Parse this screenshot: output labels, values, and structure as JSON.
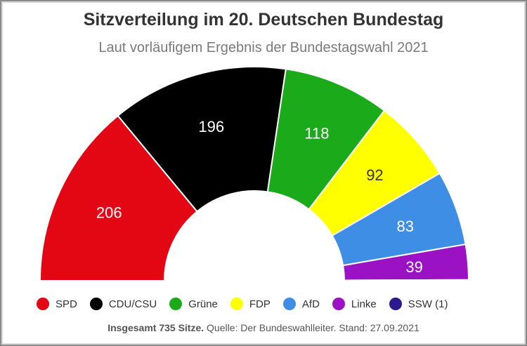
{
  "chart_data": {
    "type": "parliament-semicircle",
    "title": "Sitzverteilung im 20. Deutschen Bundestag",
    "subtitle": "Laut vorläufigem Ergebnis der Bundestagswahl 2021",
    "total_seats": 735,
    "series": [
      {
        "name": "SPD",
        "value": 206,
        "color": "#e30613",
        "label": "206",
        "label_color": "#ffffff"
      },
      {
        "name": "CDU/CSU",
        "value": 196,
        "color": "#000000",
        "label": "196",
        "label_color": "#ffffff"
      },
      {
        "name": "Grüne",
        "value": 118,
        "color": "#1aaa1a",
        "label": "118",
        "label_color": "#ffffff"
      },
      {
        "name": "FDP",
        "value": 92,
        "color": "#ffff00",
        "label": "92",
        "label_color": "#333333"
      },
      {
        "name": "AfD",
        "value": 83,
        "color": "#3f8ee6",
        "label": "83",
        "label_color": "#ffffff"
      },
      {
        "name": "Linke",
        "value": 39,
        "color": "#9a12c4",
        "label": "39",
        "label_color": "#ffffff"
      },
      {
        "name": "SSW (1)",
        "value": 1,
        "color": "#2a1a8c",
        "label": "",
        "label_color": "#ffffff"
      }
    ],
    "legend_placement": "bottom"
  },
  "footer": {
    "bold": "Insgesamt 735 Sitze.",
    "rest": " Quelle: Der Bundeswahlleiter. Stand: 27.09.2021"
  }
}
